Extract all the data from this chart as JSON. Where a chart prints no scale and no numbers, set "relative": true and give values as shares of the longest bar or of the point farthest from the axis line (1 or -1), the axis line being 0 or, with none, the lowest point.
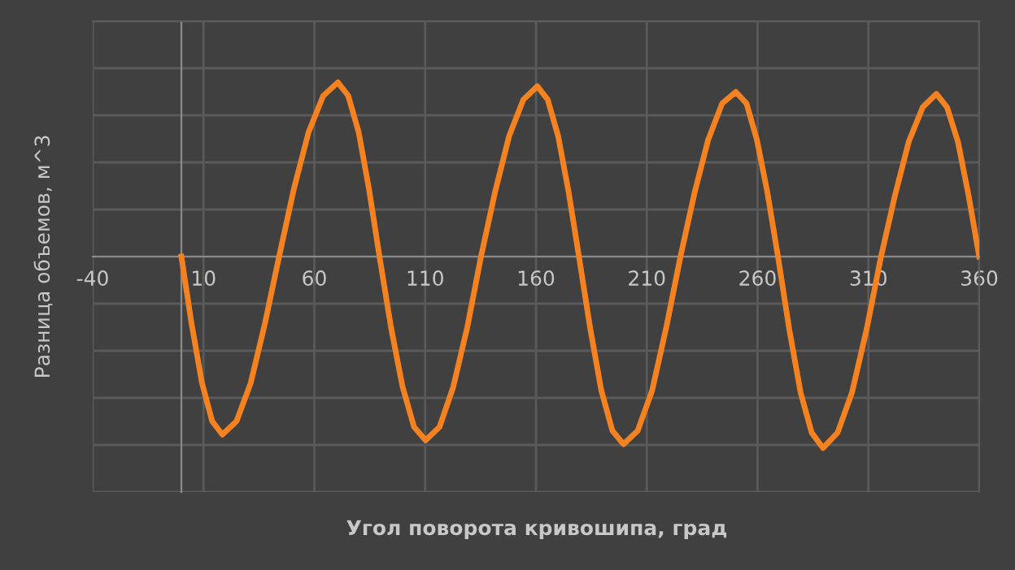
{
  "chart_data": {
    "type": "line",
    "relative": true,
    "xlabel": "Угол поворота кривошипа, град",
    "ylabel": "Разница объемов, м^3",
    "xlim": [
      -40,
      360
    ],
    "xticks": [
      -40,
      10,
      60,
      110,
      160,
      210,
      260,
      310,
      360
    ],
    "grid": true,
    "marker": "none",
    "line_style": "solid",
    "series": [
      {
        "color": "#f58220",
        "x": [
          0,
          4.6,
          9.3,
          13.9,
          18.5,
          24.9,
          31.3,
          37.7,
          44.1,
          50.7,
          57.4,
          64.0,
          70.6,
          75.3,
          80.0,
          84.7,
          89.4,
          94.6,
          99.8,
          105.0,
          110.2,
          116.5,
          122.7,
          129.0,
          135.2,
          141.6,
          147.9,
          154.3,
          160.6,
          165.3,
          170.0,
          174.7,
          179.4,
          184.4,
          189.5,
          194.5,
          199.5,
          205.9,
          212.4,
          218.8,
          225.2,
          231.5,
          237.7,
          244.0,
          250.2,
          255.0,
          259.7,
          264.5,
          269.2,
          274.3,
          279.4,
          284.4,
          289.5,
          296.1,
          302.6,
          309.2,
          315.7,
          322.0,
          328.2,
          334.5,
          340.7,
          345.5,
          350.4,
          355.2,
          360
        ],
        "values": [
          0,
          -0.35,
          -0.66,
          -0.86,
          -0.93,
          -0.86,
          -0.66,
          -0.35,
          0,
          0.35,
          0.65,
          0.84,
          0.91,
          0.84,
          0.65,
          0.35,
          0,
          -0.37,
          -0.68,
          -0.89,
          -0.96,
          -0.89,
          -0.68,
          -0.37,
          0,
          0.34,
          0.63,
          0.82,
          0.89,
          0.82,
          0.63,
          0.34,
          0,
          -0.37,
          -0.7,
          -0.91,
          -0.98,
          -0.91,
          -0.7,
          -0.37,
          0,
          0.33,
          0.61,
          0.8,
          0.86,
          0.8,
          0.61,
          0.33,
          0,
          -0.38,
          -0.71,
          -0.92,
          -1,
          -0.92,
          -0.71,
          -0.38,
          0,
          0.32,
          0.6,
          0.78,
          0.85,
          0.78,
          0.6,
          0.32,
          0
        ]
      }
    ]
  }
}
